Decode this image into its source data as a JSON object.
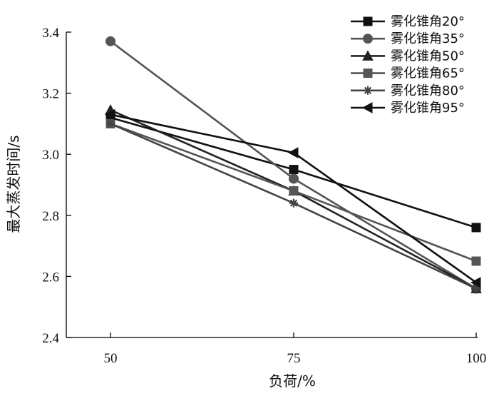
{
  "chart_data": {
    "type": "line",
    "xlabel": "负荷/%",
    "ylabel": "最大蒸发时间/s",
    "x": [
      50,
      75,
      100
    ],
    "x_tick_labels": [
      "50",
      "75",
      "100"
    ],
    "ylim": [
      2.4,
      3.4
    ],
    "y_ticks": [
      2.4,
      2.6,
      2.8,
      3.0,
      3.2,
      3.4
    ],
    "y_tick_labels": [
      "2.4",
      "2.6",
      "2.8",
      "3.0",
      "3.2",
      "3.4"
    ],
    "grid": false,
    "legend_position": "top-right",
    "series": [
      {
        "name": "雾化锥角20°",
        "marker": "square",
        "color": "#111111",
        "values": [
          3.12,
          2.95,
          2.76
        ]
      },
      {
        "name": "雾化锥角35°",
        "marker": "circle",
        "color": "#555555",
        "values": [
          3.37,
          2.92,
          2.56
        ]
      },
      {
        "name": "雾化锥角50°",
        "marker": "triangle-up",
        "color": "#222222",
        "values": [
          3.145,
          2.88,
          2.56
        ]
      },
      {
        "name": "雾化锥角65°",
        "marker": "square",
        "color": "#555555",
        "values": [
          3.1,
          2.88,
          2.65
        ]
      },
      {
        "name": "雾化锥角80°",
        "marker": "asterisk",
        "color": "#444444",
        "values": [
          3.1,
          2.84,
          2.56
        ]
      },
      {
        "name": "雾化锥角95°",
        "marker": "triangle-left",
        "color": "#111111",
        "values": [
          3.13,
          3.005,
          2.58
        ]
      }
    ]
  }
}
